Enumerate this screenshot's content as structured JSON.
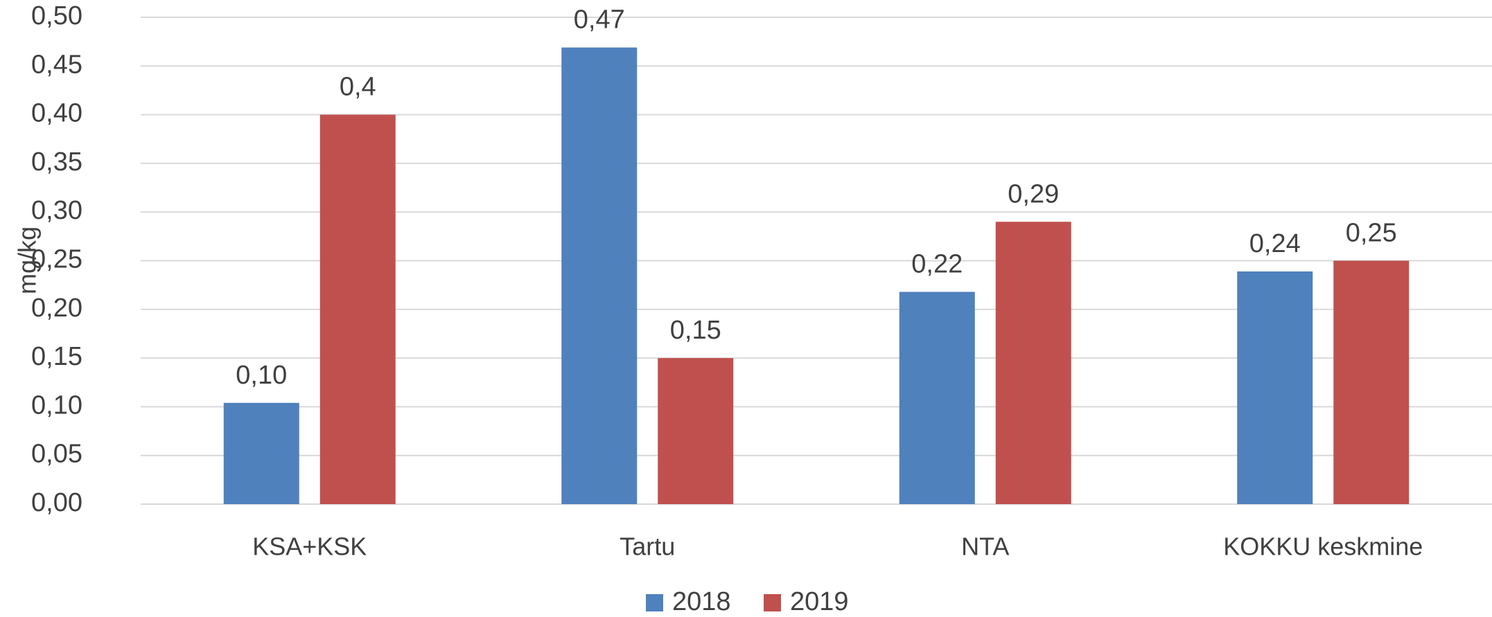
{
  "chart_data": {
    "type": "bar",
    "y_label": "mg/kg",
    "categories": [
      "KSA+KSK",
      "Tartu",
      "NTA",
      "KOKKU keskmine"
    ],
    "series": [
      {
        "name": "2018",
        "color": "#4f81bd",
        "values": [
          0.104,
          0.469,
          0.218,
          0.239
        ],
        "value_labels": [
          "0,10",
          "0,47",
          "0,22",
          "0,24"
        ]
      },
      {
        "name": "2019",
        "color": "#c0504d",
        "values": [
          0.4,
          0.15,
          0.29,
          0.25
        ],
        "value_labels": [
          "0,4",
          "0,15",
          "0,29",
          "0,25"
        ]
      }
    ],
    "ylim": [
      0,
      0.5
    ],
    "yticks": [
      {
        "value": 0,
        "label": "0,00"
      },
      {
        "value": 0.05,
        "label": "0,05"
      },
      {
        "value": 0.1,
        "label": "0,10"
      },
      {
        "value": 0.15,
        "label": "0,15"
      },
      {
        "value": 0.2,
        "label": "0,20"
      },
      {
        "value": 0.25,
        "label": "0,25"
      },
      {
        "value": 0.3,
        "label": "0,30"
      },
      {
        "value": 0.35,
        "label": "0,35"
      },
      {
        "value": 0.4,
        "label": "0,40"
      },
      {
        "value": 0.45,
        "label": "0,45"
      },
      {
        "value": 0.5,
        "label": "0,50"
      }
    ],
    "grid": true,
    "legend": "bottom"
  }
}
